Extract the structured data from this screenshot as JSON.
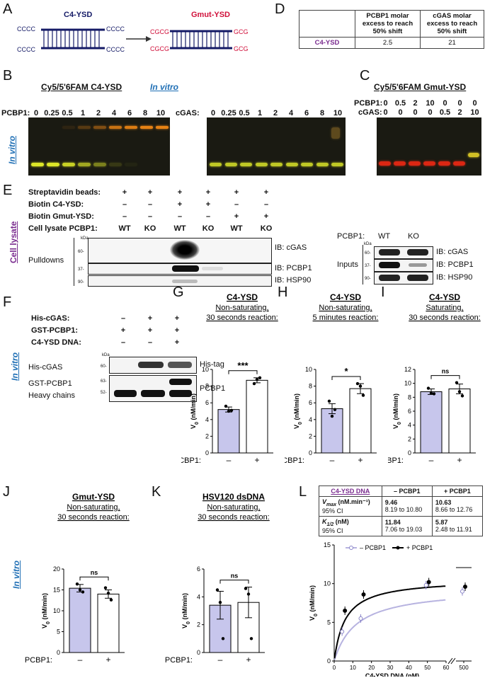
{
  "panels": {
    "A": "A",
    "B": "B",
    "C": "C",
    "D": "D",
    "E": "E",
    "F": "F",
    "G": "G",
    "H": "H",
    "I": "I",
    "J": "J",
    "K": "K",
    "L": "L"
  },
  "panelA": {
    "c4_label": "C4-YSD",
    "gmut_label": "Gmut-YSD",
    "c4_ends": [
      "CCCC",
      "CCCC",
      "CCCC",
      "CCCC"
    ],
    "gmut_ends": [
      "CGCG",
      "GCGC",
      "CGCG",
      "GCGC"
    ]
  },
  "panelD": {
    "col1": "PCBP1 molar excess to reach 50% shift",
    "col2": "cGAS molar excess to reach 50% shift",
    "row_label": "C4-YSD",
    "v1": "2.5",
    "v2": "21"
  },
  "panelB": {
    "title": "Cy5/5'6FAM C4-YSD",
    "subtitle": "In vitro",
    "side_label": "In vitro",
    "pcbp1_label": "PCBP1:",
    "pcbp1_lanes": [
      "0",
      "0.25",
      "0.5",
      "1",
      "2",
      "4",
      "6",
      "8",
      "10"
    ],
    "cgas_label": "cGAS:",
    "cgas_lanes": [
      "0",
      "0.25",
      "0.5",
      "1",
      "2",
      "4",
      "6",
      "8",
      "10"
    ]
  },
  "panelC": {
    "title": "Cy5/5'6FAM Gmut-YSD",
    "pcbp1_label": "PCBP1:",
    "cgas_label": "cGAS:",
    "pcbp1_lanes": [
      "0",
      "0.5",
      "2",
      "10",
      "0",
      "0",
      "0"
    ],
    "cgas_lanes": [
      "0",
      "0",
      "0",
      "0",
      "0.5",
      "2",
      "10"
    ]
  },
  "panelE": {
    "side_label": "Cell lysate",
    "rows": [
      {
        "label": "Streptavidin beads:",
        "vals": [
          "+",
          "+",
          "+",
          "+",
          "+",
          "+"
        ]
      },
      {
        "label": "Biotin C4-YSD:",
        "vals": [
          "–",
          "–",
          "+",
          "+",
          "–",
          "–"
        ]
      },
      {
        "label": "Biotin Gmut-YSD:",
        "vals": [
          "–",
          "–",
          "–",
          "–",
          "+",
          "+"
        ]
      },
      {
        "label": "Cell lysate PCBP1:",
        "vals": [
          "WT",
          "KO",
          "WT",
          "KO",
          "WT",
          "KO"
        ]
      }
    ],
    "pulldowns": "Pulldowns",
    "kda": "kDa",
    "mw": [
      "60-",
      "37-",
      "90-"
    ],
    "ib": [
      "IB: cGAS",
      "IB: PCBP1",
      "IB: HSP90"
    ],
    "inputs_pcbp1": "PCBP1:",
    "inputs_lanes": [
      "WT",
      "KO"
    ],
    "inputs": "Inputs",
    "inputs_mw": [
      "60-",
      "37-",
      "90-"
    ]
  },
  "panelF": {
    "side_label": "In vitro",
    "rows": [
      {
        "label": "His-cGAS:",
        "vals": [
          "–",
          "+",
          "+"
        ]
      },
      {
        "label": "GST-PCBP1:",
        "vals": [
          "+",
          "+",
          "+"
        ]
      },
      {
        "label": "C4-YSD DNA:",
        "vals": [
          "–",
          "–",
          "+"
        ]
      }
    ],
    "kda": "kDa",
    "labels": [
      "His-cGAS",
      "GST-PCBP1",
      "Heavy chains"
    ],
    "mw": [
      "60-",
      "63-",
      "52-"
    ],
    "ib": [
      "His-tag",
      "PCBP1"
    ]
  },
  "bars": {
    "G": {
      "t1": "C4-YSD",
      "t2": "Non-saturating,",
      "t3": "30 seconds reaction:",
      "sig": "***",
      "ymax": 10,
      "ticks": [
        "0",
        "2",
        "4",
        "6",
        "8",
        "10"
      ],
      "values": [
        5.2,
        8.7
      ],
      "err": [
        0.3,
        0.3
      ],
      "points": [
        [
          5.6,
          5.0,
          5.1
        ],
        [
          8.3,
          8.8,
          9.0
        ]
      ]
    },
    "H": {
      "t1": "C4-YSD",
      "t2": "Non-saturating,",
      "t3": "5 minutes reaction:",
      "sig": "*",
      "ymax": 10,
      "ticks": [
        "0",
        "2",
        "4",
        "6",
        "8",
        "10"
      ],
      "values": [
        5.3,
        7.7
      ],
      "err": [
        0.6,
        0.6
      ],
      "points": [
        [
          6.2,
          4.4,
          5.2
        ],
        [
          8.3,
          8.0,
          6.9
        ]
      ]
    },
    "I": {
      "t1": "C4-YSD",
      "t2": "Saturating,",
      "t3": "30 seconds reaction:",
      "sig": "ns",
      "ymax": 12,
      "ticks": [
        "0",
        "2",
        "4",
        "6",
        "8",
        "10",
        "12"
      ],
      "values": [
        8.8,
        9.2
      ],
      "err": [
        0.4,
        0.7
      ],
      "points": [
        [
          9.3,
          8.6,
          8.5
        ],
        [
          10.1,
          8.8,
          8.2
        ]
      ]
    },
    "J": {
      "t1": "Gmut-YSD",
      "t2": "Non-saturating,",
      "t3": "30 seconds reaction:",
      "sig": "ns",
      "ymax": 20,
      "ticks": [
        "0",
        "5",
        "10",
        "15",
        "20"
      ],
      "values": [
        15.4,
        14.0
      ],
      "err": [
        0.9,
        1.0
      ],
      "points": [
        [
          16.4,
          15.0,
          14.5
        ],
        [
          15.5,
          14.2,
          12.6
        ]
      ]
    },
    "K": {
      "t1": "HSV120 dsDNA",
      "t2": "Non-saturating,",
      "t3": "30 seconds reaction:",
      "sig": "ns",
      "ymax": 6,
      "ticks": [
        "0",
        "2",
        "4",
        "6"
      ],
      "values": [
        3.4,
        3.6
      ],
      "err": [
        1.0,
        1.1
      ],
      "points": [
        [
          4.5,
          3.6,
          1.0
        ],
        [
          4.6,
          4.2,
          1.0
        ]
      ]
    }
  },
  "axis": {
    "ylabel": "V",
    "ysub": "0",
    "yunit": " (nM/min)",
    "xlabel": "PCBP1:",
    "cats": [
      "–",
      "+"
    ]
  },
  "panelL": {
    "header": [
      "C4-YSD DNA",
      "– PCBP1",
      "+ PCBP1"
    ],
    "vmax_label": "V",
    "vmax_sub": "max",
    "vmax_unit": " (nM.min⁻¹)",
    "ci": "95% CI",
    "k_label": "K",
    "k_sub": "1/2",
    "k_unit": " (nM)",
    "vmax_minus": "9.46",
    "vmax_minus_ci": "8.19 to 10.80",
    "vmax_plus": "10.63",
    "vmax_plus_ci": "8.66 to 12.76",
    "k_minus": "11.84",
    "k_minus_ci": "7.06 to 19.03",
    "k_plus": "5.87",
    "k_plus_ci": "2.48 to 11.91",
    "legend_minus": "– PCBP1",
    "legend_plus": "+ PCBP1",
    "xlabel": "C4-YSD DNA (nM)",
    "yticks": [
      "0",
      "5",
      "10",
      "15"
    ],
    "xticks": [
      "0",
      "10",
      "20",
      "30",
      "40",
      "50",
      "60",
      "500"
    ]
  },
  "colors": {
    "bar_minus": "#c7c6ec",
    "accent_blue": "#1f6fb5",
    "accent_purple": "#7a2c8f",
    "gmut_red": "#d0103a",
    "c4_navy": "#141a66"
  },
  "chart_data": [
    {
      "type": "bar",
      "panel": "G",
      "title": "C4-YSD",
      "xlabel": "PCBP1:",
      "ylabel": "V0 (nM/min)",
      "categories": [
        "–",
        "+"
      ],
      "values": [
        5.2,
        8.7
      ],
      "ylim": [
        0,
        10
      ]
    },
    {
      "type": "bar",
      "panel": "H",
      "title": "C4-YSD",
      "xlabel": "PCBP1:",
      "ylabel": "V0 (nM/min)",
      "categories": [
        "–",
        "+"
      ],
      "values": [
        5.3,
        7.7
      ],
      "ylim": [
        0,
        10
      ]
    },
    {
      "type": "bar",
      "panel": "I",
      "title": "C4-YSD",
      "xlabel": "PCBP1:",
      "ylabel": "V0 (nM/min)",
      "categories": [
        "–",
        "+"
      ],
      "values": [
        8.8,
        9.2
      ],
      "ylim": [
        0,
        12
      ]
    },
    {
      "type": "bar",
      "panel": "J",
      "title": "Gmut-YSD",
      "xlabel": "PCBP1:",
      "ylabel": "V0 (nM/min)",
      "categories": [
        "–",
        "+"
      ],
      "values": [
        15.4,
        14.0
      ],
      "ylim": [
        0,
        20
      ]
    },
    {
      "type": "bar",
      "panel": "K",
      "title": "HSV120 dsDNA",
      "xlabel": "PCBP1:",
      "ylabel": "V0 (nM/min)",
      "categories": [
        "–",
        "+"
      ],
      "values": [
        3.4,
        3.6
      ],
      "ylim": [
        0,
        6
      ]
    },
    {
      "type": "line",
      "panel": "L",
      "xlabel": "C4-YSD DNA (nM)",
      "ylabel": "V0 (nM/min)",
      "ylim": [
        0,
        15
      ],
      "series": [
        {
          "name": "– PCBP1",
          "x": [
            5,
            15,
            50,
            500
          ],
          "y": [
            3.8,
            5.5,
            9.8,
            9.0
          ]
        },
        {
          "name": "+ PCBP1",
          "x": [
            5,
            15,
            50,
            500
          ],
          "y": [
            6.5,
            8.6,
            10.2,
            9.6
          ]
        }
      ]
    }
  ]
}
